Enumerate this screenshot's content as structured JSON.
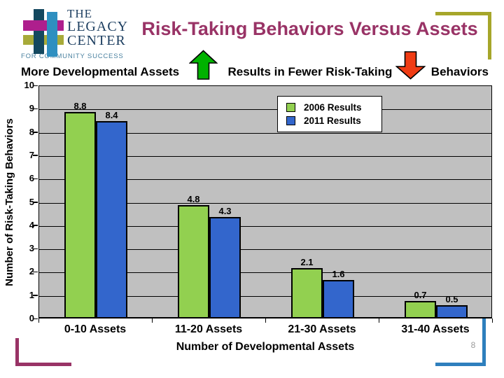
{
  "slide": {
    "title": "Risk-Taking Behaviors Versus Assets",
    "page_number": "8"
  },
  "logo": {
    "line1": "THE",
    "line2": "LEGACY",
    "line3": "CENTER",
    "tagline": "FOR COMMUNITY SUCCESS",
    "colors": {
      "dark_bar": "#14485F",
      "blue_bar": "#2E8FC0",
      "magenta_bar": "#AE1F8D",
      "olive_bar": "#A7AA39",
      "text": "#1B3D5F",
      "tagline": "#4A81A0"
    }
  },
  "subtitle": {
    "part1": "More Developmental Assets",
    "part2": "Results in Fewer Risk-Taking",
    "part3": "Behaviors",
    "up_arrow_color": "#00B200",
    "down_arrow_color": "#F03C14"
  },
  "decor": {
    "top_right_bracket_color": "#A6A62A",
    "bottom_left_bracket_color": "#993366",
    "bottom_right_bracket_color": "#2E7FBD",
    "title_color": "#993366"
  },
  "chart_data": {
    "type": "bar",
    "title": "",
    "categories": [
      "0-10 Assets",
      "11-20 Assets",
      "21-30 Assets",
      "31-40 Assets"
    ],
    "series": [
      {
        "name": "2006 Results",
        "color": "#92D050",
        "values": [
          8.8,
          4.8,
          2.1,
          0.7
        ]
      },
      {
        "name": "2011 Results",
        "color": "#3366CC",
        "values": [
          8.4,
          4.3,
          1.6,
          0.5
        ]
      }
    ],
    "xlabel": "Number of Developmental Assets",
    "ylabel": "Number of Risk-Taking Behaviors",
    "ylim": [
      0,
      10
    ],
    "ytick_step": 1,
    "grid": true,
    "plot_bg": "#C0C0C0",
    "legend_position": "top-right-inside"
  }
}
